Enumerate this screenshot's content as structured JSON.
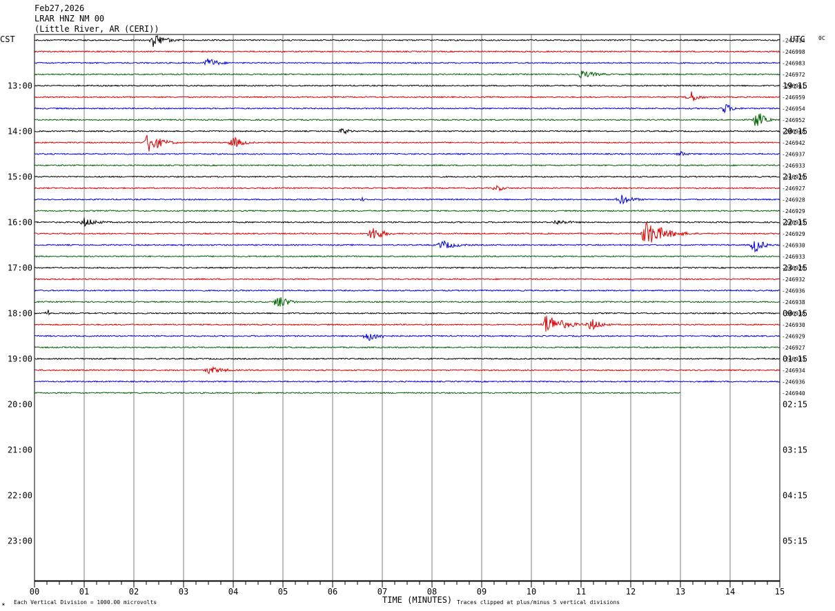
{
  "header": {
    "date": "Feb27,2026",
    "station": "LRAR HNZ NM 00",
    "location": "(Little River, AR (CERI))",
    "left_tz": "CST",
    "right_tz": "UTC",
    "corner_tag": "0C"
  },
  "footer": {
    "xlabel": "TIME (MINUTES)",
    "scale_note": "Each Vertical Division = 1000.00 microvolts",
    "clip_note": "Traces clipped at plus/minus 5 vertical divisions",
    "logo_mark": "✶"
  },
  "colors": {
    "trace_cycle": [
      "#000000",
      "#dd0000",
      "#0000dd",
      "#006400"
    ],
    "grid": "#808080",
    "frame": "#000000"
  },
  "chart_data": {
    "type": "helicorder",
    "xlabel": "TIME (MINUTES)",
    "x_ticks": [
      "00",
      "01",
      "02",
      "03",
      "04",
      "05",
      "06",
      "07",
      "08",
      "09",
      "10",
      "11",
      "12",
      "13",
      "14",
      "15"
    ],
    "xlim": [
      0,
      15
    ],
    "minor_tick_step_min": 0.25,
    "hours_total": 12,
    "rows_per_hour": 4,
    "left_hour_labels": [
      "13:00",
      "14:00",
      "15:00",
      "16:00",
      "17:00",
      "18:00",
      "19:00",
      "20:00",
      "21:00",
      "22:00",
      "23:00"
    ],
    "right_hour_labels": [
      "19:15",
      "20:15",
      "21:15",
      "22:15",
      "23:15",
      "00:15",
      "01:15",
      "02:15",
      "03:15",
      "04:15",
      "05:15"
    ],
    "row_values": [
      "247014",
      "246998",
      "246983",
      "246972",
      "246961",
      "246959",
      "246954",
      "246952",
      "246948",
      "246942",
      "246937",
      "246933",
      "246929",
      "246927",
      "246928",
      "246929",
      "246933",
      "246929",
      "246930",
      "246933",
      "246928",
      "246932",
      "246936",
      "246938",
      "246938",
      "246930",
      "246929",
      "246927",
      "246933",
      "246934",
      "246936",
      "246940"
    ],
    "trace_rows": 32,
    "last_row_end_min": 13,
    "events": [
      {
        "row": 0,
        "t": 2.4,
        "amp": 11,
        "dur": 0.7
      },
      {
        "row": 2,
        "t": 3.5,
        "amp": 8,
        "dur": 0.6
      },
      {
        "row": 3,
        "t": 11.0,
        "amp": 6,
        "dur": 1.0
      },
      {
        "row": 5,
        "t": 13.2,
        "amp": 10,
        "dur": 0.5
      },
      {
        "row": 6,
        "t": 13.9,
        "amp": 8,
        "dur": 0.5
      },
      {
        "row": 7,
        "t": 14.55,
        "amp": 15,
        "dur": 0.4
      },
      {
        "row": 8,
        "t": 6.2,
        "amp": 5,
        "dur": 0.5
      },
      {
        "row": 9,
        "t": 2.3,
        "amp": 16,
        "dur": 0.7
      },
      {
        "row": 9,
        "t": 4.0,
        "amp": 9,
        "dur": 0.6
      },
      {
        "row": 10,
        "t": 13.0,
        "amp": 4,
        "dur": 0.5
      },
      {
        "row": 13,
        "t": 9.3,
        "amp": 5,
        "dur": 0.5
      },
      {
        "row": 14,
        "t": 6.6,
        "amp": 3,
        "dur": 0.2
      },
      {
        "row": 14,
        "t": 11.8,
        "amp": 8,
        "dur": 0.7
      },
      {
        "row": 16,
        "t": 1.0,
        "amp": 7,
        "dur": 0.8
      },
      {
        "row": 16,
        "t": 10.5,
        "amp": 4,
        "dur": 1.0
      },
      {
        "row": 17,
        "t": 6.8,
        "amp": 12,
        "dur": 0.6
      },
      {
        "row": 17,
        "t": 12.3,
        "amp": 20,
        "dur": 1.1
      },
      {
        "row": 18,
        "t": 8.2,
        "amp": 7,
        "dur": 0.9
      },
      {
        "row": 18,
        "t": 14.5,
        "amp": 12,
        "dur": 0.5
      },
      {
        "row": 23,
        "t": 4.9,
        "amp": 11,
        "dur": 0.6
      },
      {
        "row": 24,
        "t": 0.28,
        "amp": 6,
        "dur": 0.05
      },
      {
        "row": 25,
        "t": 10.3,
        "amp": 16,
        "dur": 1.0
      },
      {
        "row": 25,
        "t": 11.2,
        "amp": 10,
        "dur": 0.6
      },
      {
        "row": 26,
        "t": 6.7,
        "amp": 8,
        "dur": 0.8
      },
      {
        "row": 29,
        "t": 3.5,
        "amp": 6,
        "dur": 1.0
      }
    ]
  }
}
